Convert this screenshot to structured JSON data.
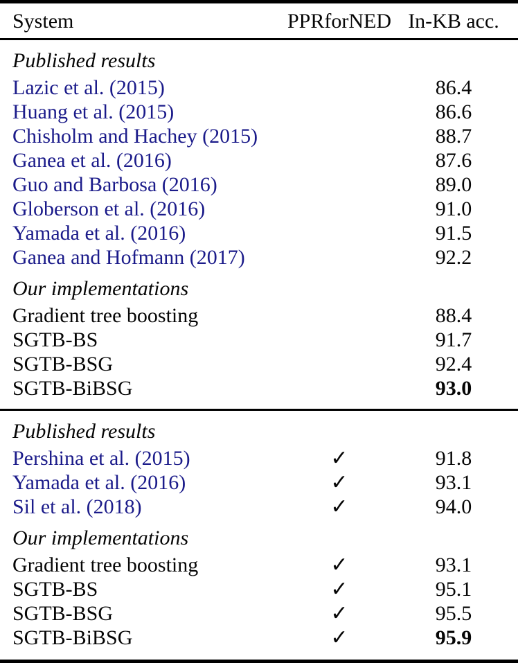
{
  "table": {
    "header": {
      "system": "System",
      "ppr": "PPRforNED",
      "acc": "In-KB acc."
    },
    "checkmark_glyph": "✓",
    "colors": {
      "citation_link": "#1b1b8a",
      "text": "#060606",
      "background": "#ffffff",
      "rule": "#000000"
    },
    "blocks": [
      {
        "sections": [
          {
            "label": "Published results",
            "rows": [
              {
                "system": "Lazic et al. (2015)",
                "ppr": "",
                "acc": "86.4"
              },
              {
                "system": "Huang et al. (2015)",
                "ppr": "",
                "acc": "86.6"
              },
              {
                "system": "Chisholm and Hachey (2015)",
                "ppr": "",
                "acc": "88.7"
              },
              {
                "system": "Ganea et al. (2016)",
                "ppr": "",
                "acc": "87.6"
              },
              {
                "system": "Guo and Barbosa (2016)",
                "ppr": "",
                "acc": "89.0"
              },
              {
                "system": "Globerson et al. (2016)",
                "ppr": "",
                "acc": "91.0"
              },
              {
                "system": "Yamada et al. (2016)",
                "ppr": "",
                "acc": "91.5"
              },
              {
                "system": "Ganea and Hofmann (2017)",
                "ppr": "",
                "acc": "92.2"
              }
            ]
          },
          {
            "label": "Our implementations",
            "rows": [
              {
                "system": "Gradient tree boosting",
                "ppr": "",
                "acc": "88.4"
              },
              {
                "system": "SGTB-BS",
                "ppr": "",
                "acc": "91.7"
              },
              {
                "system": "SGTB-BSG",
                "ppr": "",
                "acc": "92.4"
              },
              {
                "system": "SGTB-BiBSG",
                "ppr": "",
                "acc": "93.0"
              }
            ]
          }
        ]
      },
      {
        "sections": [
          {
            "label": "Published results",
            "rows": [
              {
                "system": "Pershina et al. (2015)",
                "ppr": "✓",
                "acc": "91.8"
              },
              {
                "system": "Yamada et al. (2016)",
                "ppr": "✓",
                "acc": "93.1"
              },
              {
                "system": "Sil et al. (2018)",
                "ppr": "✓",
                "acc": "94.0"
              }
            ]
          },
          {
            "label": "Our implementations",
            "rows": [
              {
                "system": "Gradient tree boosting",
                "ppr": "✓",
                "acc": "93.1"
              },
              {
                "system": "SGTB-BS",
                "ppr": "✓",
                "acc": "95.1"
              },
              {
                "system": "SGTB-BSG",
                "ppr": "✓",
                "acc": "95.5"
              },
              {
                "system": "SGTB-BiBSG",
                "ppr": "✓",
                "acc": "95.9"
              }
            ]
          }
        ]
      }
    ]
  }
}
